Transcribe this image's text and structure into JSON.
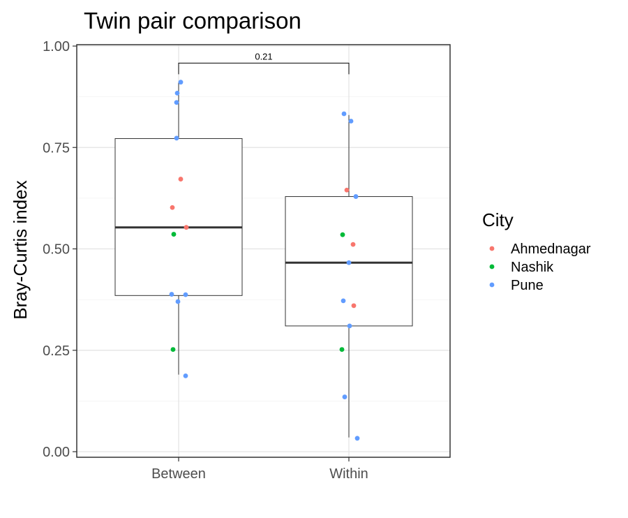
{
  "chart_data": {
    "type": "box",
    "title": "Twin pair comparison",
    "xlabel": "",
    "ylabel": "Bray-Curtis index",
    "ylim": [
      0,
      1
    ],
    "yticks": [
      "0.00",
      "0.25",
      "0.50",
      "0.75",
      "1.00"
    ],
    "categories": [
      "Between",
      "Within"
    ],
    "boxes": [
      {
        "category": "Between",
        "whisker_low": 0.19,
        "q1": 0.385,
        "median": 0.553,
        "q3": 0.772,
        "whisker_high": 0.91
      },
      {
        "category": "Within",
        "whisker_low": 0.035,
        "q1": 0.31,
        "median": 0.466,
        "q3": 0.629,
        "whisker_high": 0.83
      }
    ],
    "points": [
      {
        "category": "Between",
        "city": "Pune",
        "value": 0.911
      },
      {
        "category": "Between",
        "city": "Pune",
        "value": 0.884
      },
      {
        "category": "Between",
        "city": "Pune",
        "value": 0.861
      },
      {
        "category": "Between",
        "city": "Pune",
        "value": 0.773
      },
      {
        "category": "Between",
        "city": "Ahmednagar",
        "value": 0.672
      },
      {
        "category": "Between",
        "city": "Ahmednagar",
        "value": 0.602
      },
      {
        "category": "Between",
        "city": "Ahmednagar",
        "value": 0.553
      },
      {
        "category": "Between",
        "city": "Nashik",
        "value": 0.536
      },
      {
        "category": "Between",
        "city": "Pune",
        "value": 0.388
      },
      {
        "category": "Between",
        "city": "Pune",
        "value": 0.387
      },
      {
        "category": "Between",
        "city": "Pune",
        "value": 0.37
      },
      {
        "category": "Between",
        "city": "Nashik",
        "value": 0.252
      },
      {
        "category": "Between",
        "city": "Pune",
        "value": 0.187
      },
      {
        "category": "Within",
        "city": "Pune",
        "value": 0.833
      },
      {
        "category": "Within",
        "city": "Pune",
        "value": 0.815
      },
      {
        "category": "Within",
        "city": "Ahmednagar",
        "value": 0.645
      },
      {
        "category": "Within",
        "city": "Pune",
        "value": 0.629
      },
      {
        "category": "Within",
        "city": "Nashik",
        "value": 0.535
      },
      {
        "category": "Within",
        "city": "Ahmednagar",
        "value": 0.511
      },
      {
        "category": "Within",
        "city": "Pune",
        "value": 0.466
      },
      {
        "category": "Within",
        "city": "Pune",
        "value": 0.372
      },
      {
        "category": "Within",
        "city": "Ahmednagar",
        "value": 0.36
      },
      {
        "category": "Within",
        "city": "Pune",
        "value": 0.31
      },
      {
        "category": "Within",
        "city": "Nashik",
        "value": 0.252
      },
      {
        "category": "Within",
        "city": "Pune",
        "value": 0.135
      },
      {
        "category": "Within",
        "city": "Pune",
        "value": 0.033
      }
    ],
    "comparison": {
      "from": "Between",
      "to": "Within",
      "label": "0.21",
      "level": 0.958
    },
    "legend": {
      "title": "City",
      "position": "right",
      "entries": [
        {
          "name": "Ahmednagar",
          "color": "#F8766D"
        },
        {
          "name": "Nashik",
          "color": "#00BA38"
        },
        {
          "name": "Pune",
          "color": "#619CFF"
        }
      ]
    },
    "grid": true
  }
}
